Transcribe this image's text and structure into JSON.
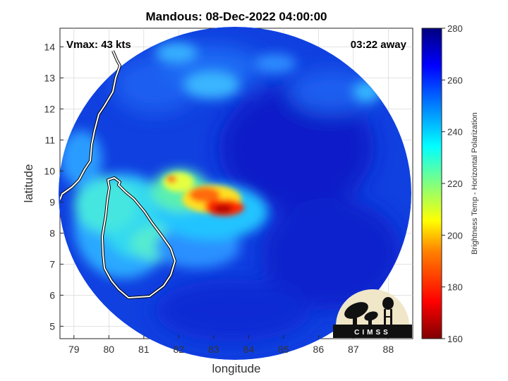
{
  "map": {
    "title": "Mandous: 08-Dec-2022 04:00:00",
    "vmax_text": "Vmax: 43 kts",
    "time_away_text": "03:22 away",
    "xlabel": "longitude",
    "ylabel": "latitude",
    "lon_range": [
      78.6,
      88.7
    ],
    "lat_range": [
      4.6,
      14.6
    ],
    "lon_ticks": [
      "79",
      "80",
      "81",
      "82",
      "83",
      "84",
      "85",
      "86",
      "87",
      "88"
    ],
    "lat_ticks": [
      "5",
      "6",
      "7",
      "8",
      "9",
      "10",
      "11",
      "12",
      "13",
      "14"
    ],
    "grid": true,
    "swath_center": [
      83.6,
      9.6
    ],
    "storm_core": [
      83.3,
      8.6
    ],
    "colors": {
      "background": "#0d2fd8",
      "coastline": "#ffffff",
      "coastline_shadow": "#000000",
      "grid": "#d0d0d0"
    },
    "logo": {
      "text": "CIMSS",
      "background": "#f0e6c8",
      "silhouette": "#111111",
      "icon": "satellite-dish-and-water-tower-logo"
    }
  },
  "colorbar": {
    "label": "Brightness Temp - Horizontal Polarization",
    "min": 160,
    "max": 280,
    "ticks": [
      "280",
      "260",
      "240",
      "220",
      "200",
      "180",
      "160"
    ],
    "colormap": "jet",
    "stops": [
      "#7f0000",
      "#ff0000",
      "#ff8000",
      "#ffff00",
      "#80ff80",
      "#00ffff",
      "#0080ff",
      "#0000ff",
      "#00007f"
    ]
  }
}
